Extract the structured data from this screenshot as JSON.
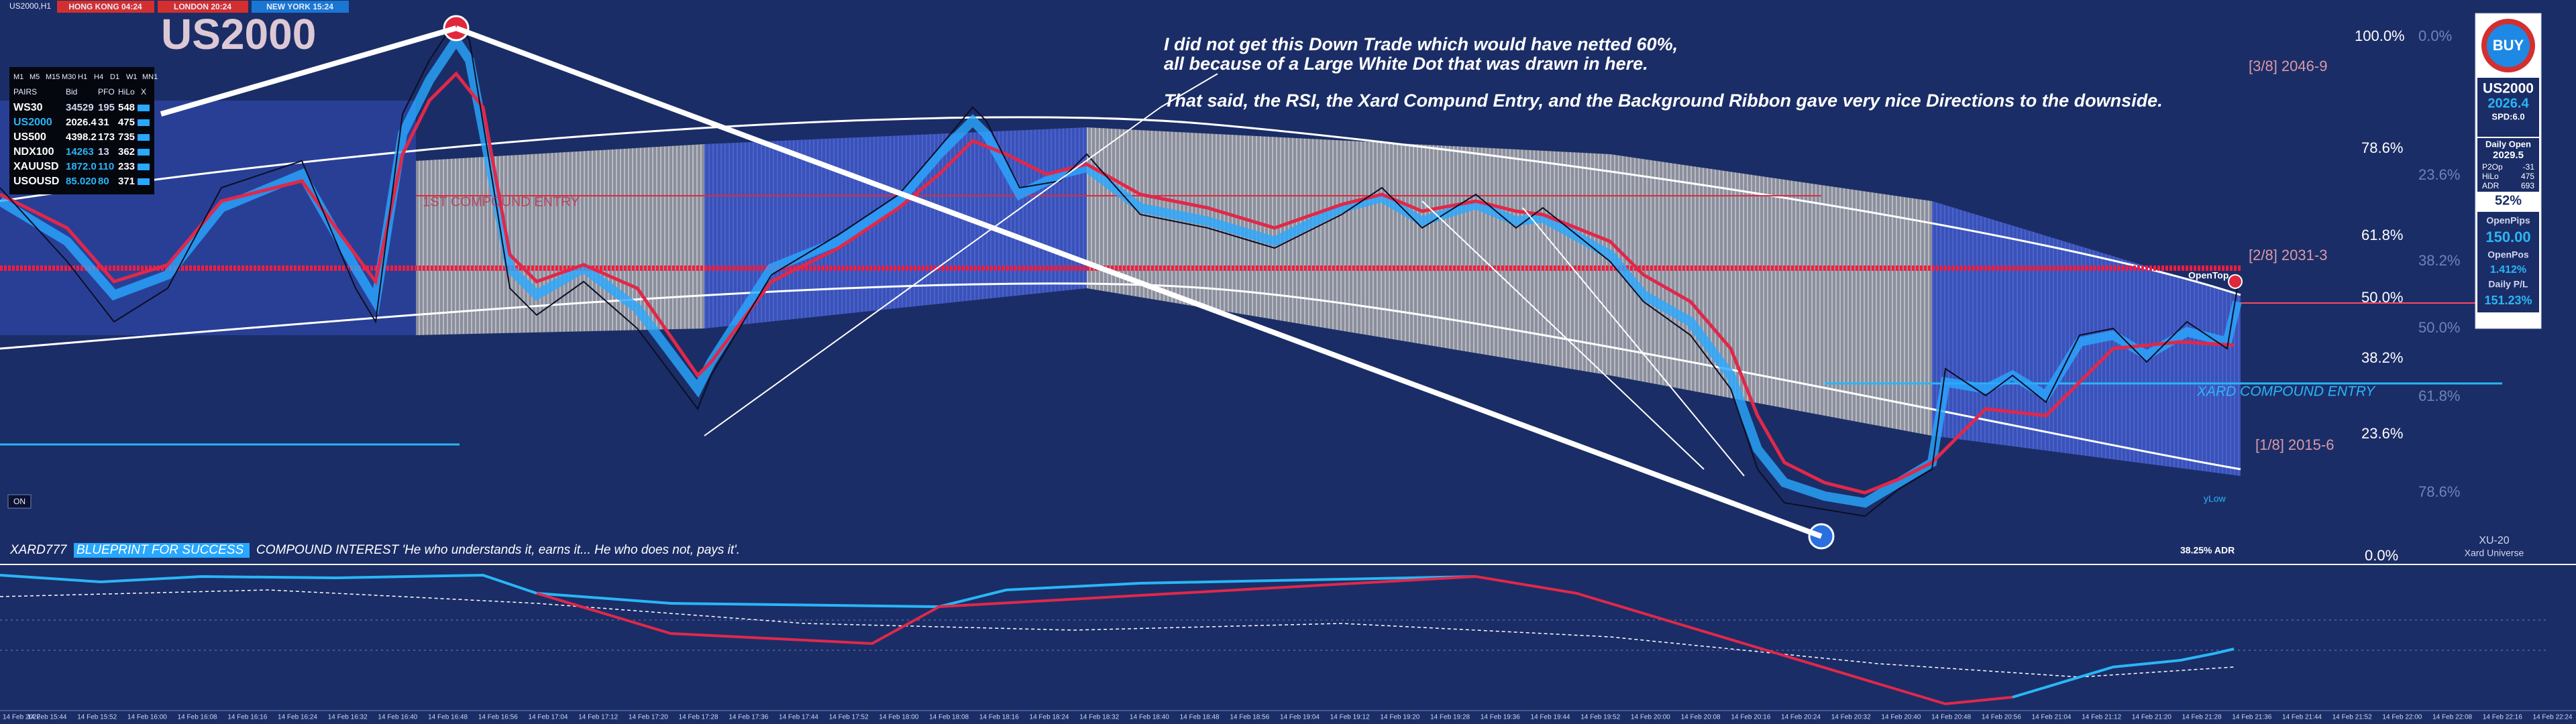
{
  "header": {
    "symbol_period": "US2000,H1",
    "sessions": [
      "HONG KONG 04:24",
      "LONDON 20:24",
      "NEW YORK 15:24"
    ],
    "symbol": "US2000"
  },
  "watchlist": {
    "timeframes": [
      "M1",
      "M5",
      "M15",
      "M30",
      "H1",
      "H4",
      "D1",
      "W1",
      "MN1"
    ],
    "columns": [
      "PAIRS",
      "Bid",
      "PFO",
      "HiLo",
      "X"
    ],
    "rows": [
      [
        "WS30",
        "34529",
        "195",
        "548"
      ],
      [
        "US2000",
        "2026.4",
        "31",
        "475"
      ],
      [
        "US500",
        "4398.2",
        "173",
        "735"
      ],
      [
        "NDX100",
        "14263",
        "13",
        "362"
      ],
      [
        "XAUUSD",
        "1872.0",
        "110",
        "233"
      ],
      [
        "USOUSD",
        "85.020",
        "80",
        "371"
      ]
    ]
  },
  "annotation": {
    "lines": [
      "I did not get this Down Trade which would have netted 60%,",
      "all because of a Large White Dot that was drawn in here.",
      "That said, the RSI, the Xard Compund Entry, and the Background Ribbon gave very nice Directions to the downside."
    ]
  },
  "fib_levels": [
    "100.0%",
    "78.6%",
    "61.8%",
    "50.0%",
    "38.2%",
    "23.6%",
    "0.0%"
  ],
  "fib_faded": [
    "0.0%",
    "23.6%",
    "38.2%",
    "50.0%",
    "61.8%",
    "78.6%"
  ],
  "octaves": [
    "[3/8] 2046-9",
    "[2/8] 2031-3",
    "[1/8] 2015-6"
  ],
  "chart_labels": {
    "compound_entry": "XARD COMPOUND ENTRY",
    "first_entry": "1ST COMPOUND ENTRY",
    "open_top": "OpenTop",
    "y_low": "yLow",
    "adr": "38.25% ADR",
    "on_button": "ON",
    "brand": "XU-20",
    "brand_sub": "Xard Universe"
  },
  "footer": {
    "prefix": "XARD777",
    "highlight": "BLUEPRINT FOR SUCCESS",
    "quote": "COMPOUND INTEREST  'He who understands it, earns it... He who does not, pays it'."
  },
  "panel": {
    "button": "BUY",
    "symbol": "US2000",
    "price": "2026.4",
    "spread": "SPD:6.0",
    "daily_open_label": "Daily Open",
    "daily_open": "2029.5",
    "stats": [
      [
        "P2Op",
        "-31"
      ],
      [
        "HiLo",
        "475"
      ],
      [
        "ADR",
        "693"
      ]
    ],
    "percent": "52%",
    "open_pips_label": "OpenPips",
    "open_pips": "150.00",
    "open_pos_label": "OpenPos",
    "open_pos": "1.412%",
    "daily_pl_label": "Daily P/L",
    "daily_pl": "151.23%"
  },
  "time_labels": [
    "14 Feb 2022",
    "14 Feb 15:44",
    "14 Feb 15:52",
    "14 Feb 16:00",
    "14 Feb 16:08",
    "14 Feb 16:16",
    "14 Feb 16:24",
    "14 Feb 16:32",
    "14 Feb 16:40",
    "14 Feb 16:48",
    "14 Feb 16:56",
    "14 Feb 17:04",
    "14 Feb 17:12",
    "14 Feb 17:20",
    "14 Feb 17:28",
    "14 Feb 17:36",
    "14 Feb 17:44",
    "14 Feb 17:52",
    "14 Feb 18:00",
    "14 Feb 18:08",
    "14 Feb 18:16",
    "14 Feb 18:24",
    "14 Feb 18:32",
    "14 Feb 18:40",
    "14 Feb 18:48",
    "14 Feb 18:56",
    "14 Feb 19:04",
    "14 Feb 19:12",
    "14 Feb 19:20",
    "14 Feb 19:28",
    "14 Feb 19:36",
    "14 Feb 19:44",
    "14 Feb 19:52",
    "14 Feb 20:00",
    "14 Feb 20:08",
    "14 Feb 20:16",
    "14 Feb 20:24",
    "14 Feb 20:32",
    "14 Feb 20:40",
    "14 Feb 20:48",
    "14 Feb 20:56",
    "14 Feb 21:04",
    "14 Feb 21:12",
    "14 Feb 21:20",
    "14 Feb 21:28",
    "14 Feb 21:36",
    "14 Feb 21:44",
    "14 Feb 21:52",
    "14 Feb 22:00",
    "14 Feb 22:08",
    "14 Feb 22:16",
    "14 Feb 22:24"
  ]
}
